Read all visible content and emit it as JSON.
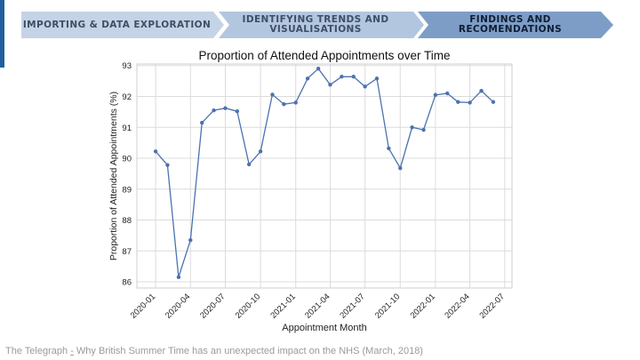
{
  "header": {
    "steps": [
      {
        "label": "IMPORTING & DATA EXPLORATION",
        "color": "#c5d3e6"
      },
      {
        "label_line1": "IDENTIFYING TRENDS AND",
        "label_line2": "VISUALISATIONS",
        "color": "#b3c6e0"
      },
      {
        "label_line1": "FINDINGS AND",
        "label_line2": "RECOMENDATIONS",
        "color": "#7d9dc6"
      }
    ]
  },
  "chart_data": {
    "type": "line",
    "title": "Proportion of Attended Appointments over Time",
    "xlabel": "Appointment Month",
    "ylabel": "Proportion of Attended Appointments (%)",
    "x_tick_labels": [
      "2020-01",
      "2020-04",
      "2020-07",
      "2020-10",
      "2021-01",
      "2021-04",
      "2021-07",
      "2021-10",
      "2022-01",
      "2022-04",
      "2022-07"
    ],
    "y_ticks": [
      86,
      87,
      88,
      89,
      90,
      91,
      92,
      93
    ],
    "ylim": [
      85.8,
      93.05
    ],
    "xlim": [
      "2019-11-13",
      "2022-07-20"
    ],
    "grid": true,
    "line_color": "#4c72b0",
    "x": [
      "2020-01",
      "2020-02",
      "2020-03",
      "2020-04",
      "2020-05",
      "2020-06",
      "2020-07",
      "2020-08",
      "2020-09",
      "2020-10",
      "2020-11",
      "2020-12",
      "2021-01",
      "2021-02",
      "2021-03",
      "2021-04",
      "2021-05",
      "2021-06",
      "2021-07",
      "2021-08",
      "2021-09",
      "2021-10",
      "2021-11",
      "2021-12",
      "2022-01",
      "2022-02",
      "2022-03",
      "2022-04",
      "2022-05",
      "2022-06"
    ],
    "values": [
      90.22,
      89.78,
      86.15,
      87.35,
      91.15,
      91.55,
      91.62,
      91.52,
      89.8,
      90.22,
      92.06,
      91.75,
      91.8,
      92.58,
      92.9,
      92.38,
      92.64,
      92.64,
      92.32,
      92.58,
      90.32,
      89.68,
      91.0,
      90.92,
      92.05,
      92.1,
      91.82,
      91.8,
      92.18,
      91.82
    ]
  },
  "caption": {
    "source": "The Telegraph",
    "sep": "-",
    "text": "Why British Summer Time has an unexpected impact on the NHS (March, 2018)"
  }
}
